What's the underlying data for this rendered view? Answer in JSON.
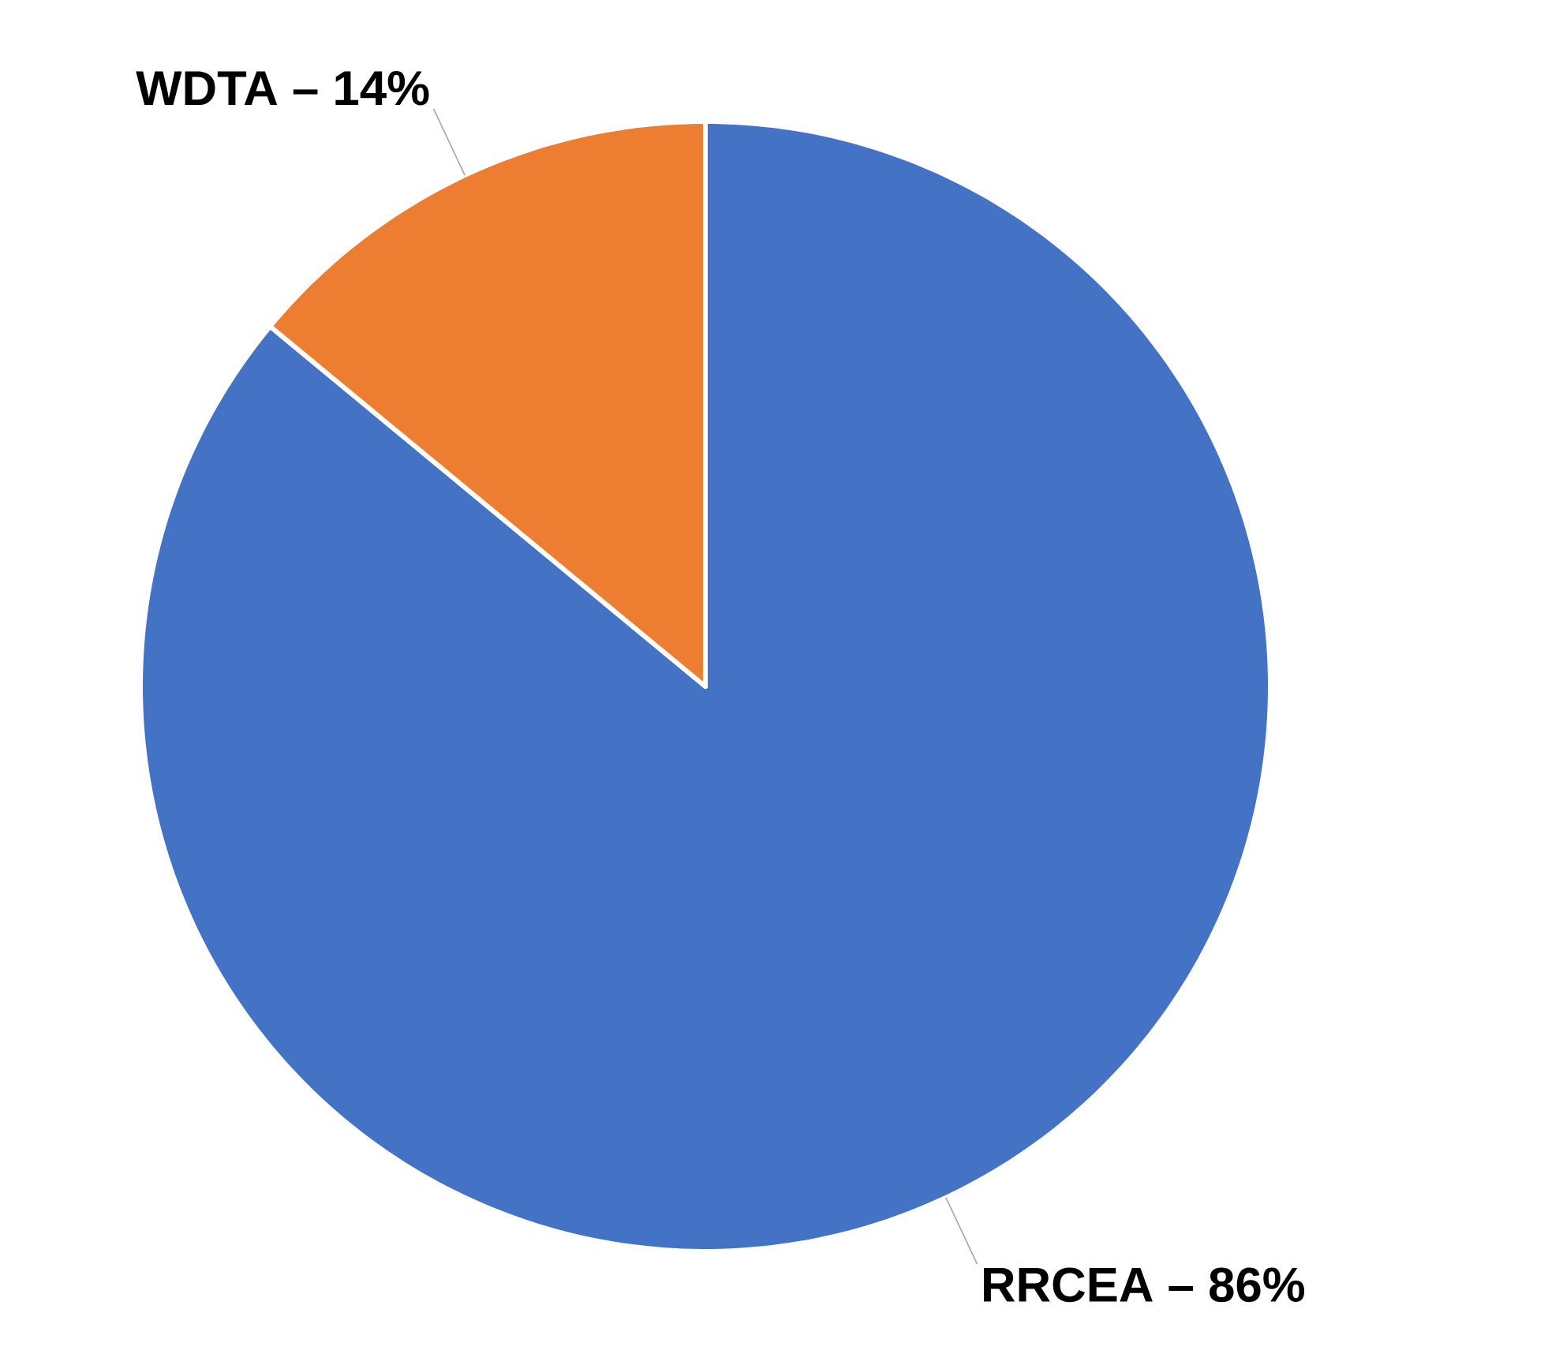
{
  "chart_data": {
    "type": "pie",
    "categories": [
      "RRCEA – 86%",
      "WDTA – 14%"
    ],
    "values": [
      86,
      14
    ],
    "colors": [
      "#4472c4",
      "#ed7d31"
    ]
  }
}
